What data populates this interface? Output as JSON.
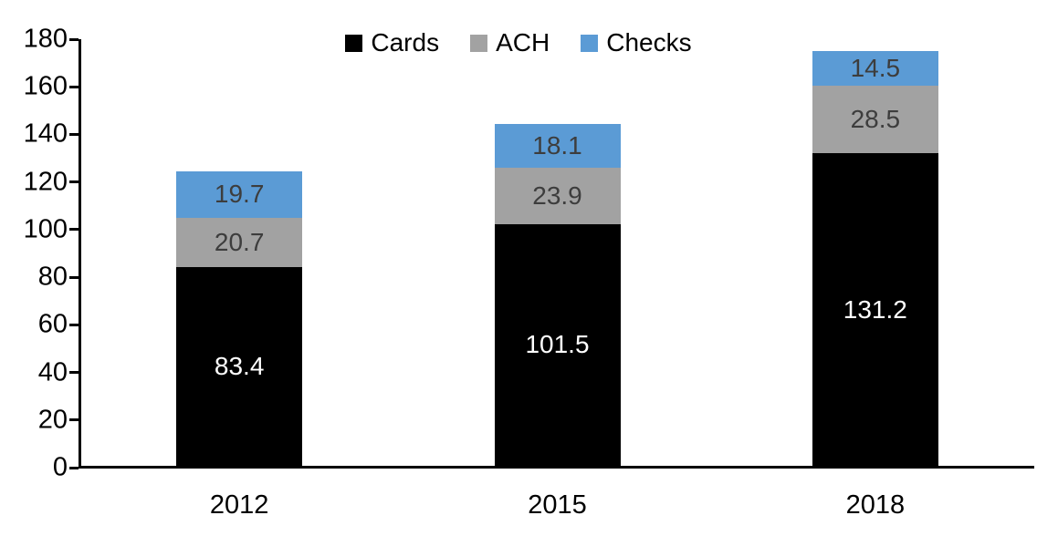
{
  "chart_data": {
    "type": "bar",
    "stacked": true,
    "title": "",
    "xlabel": "",
    "ylabel": "",
    "categories": [
      "2012",
      "2015",
      "2018"
    ],
    "series": [
      {
        "name": "Cards",
        "values": [
          83.4,
          101.5,
          131.2
        ],
        "color": "#000000",
        "label_color": "#FFFFFF"
      },
      {
        "name": "ACH",
        "values": [
          20.7,
          23.9,
          28.5
        ],
        "color": "#A2A2A2",
        "label_color": "#3D3D3D"
      },
      {
        "name": "Checks",
        "values": [
          19.7,
          18.1,
          14.5
        ],
        "color": "#5B9BD5",
        "label_color": "#3D3D3D"
      }
    ],
    "ylim": [
      0,
      180
    ],
    "ytick_step": 20,
    "ytick_labels": [
      "0",
      "20",
      "40",
      "60",
      "80",
      "100",
      "120",
      "140",
      "160",
      "180"
    ],
    "grid": false,
    "legend_position": "top-center",
    "axis_color": "#000000",
    "background_color": "#FFFFFF"
  }
}
